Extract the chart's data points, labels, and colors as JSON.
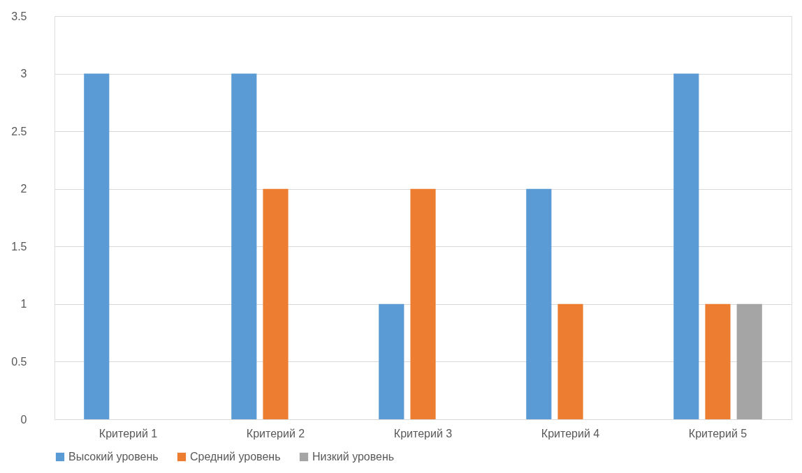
{
  "chart_data": {
    "type": "bar",
    "categories": [
      "Критерий 1",
      "Критерий 2",
      "Критерий 3",
      "Критерий 4",
      "Критерий 5"
    ],
    "series": [
      {
        "name": "Высокий уровень",
        "color": "#5b9bd5",
        "values": [
          3,
          3,
          1,
          2,
          3
        ]
      },
      {
        "name": "Средний уровень",
        "color": "#ed7d31",
        "values": [
          0,
          2,
          2,
          1,
          1
        ]
      },
      {
        "name": "Низкий уровень",
        "color": "#a5a5a5",
        "values": [
          0,
          0,
          0,
          0,
          1
        ]
      }
    ],
    "ylim": [
      0,
      3.5
    ],
    "yticks": [
      0,
      0.5,
      1,
      1.5,
      2,
      2.5,
      3,
      3.5
    ],
    "grid": "y",
    "legend": "bottom"
  }
}
